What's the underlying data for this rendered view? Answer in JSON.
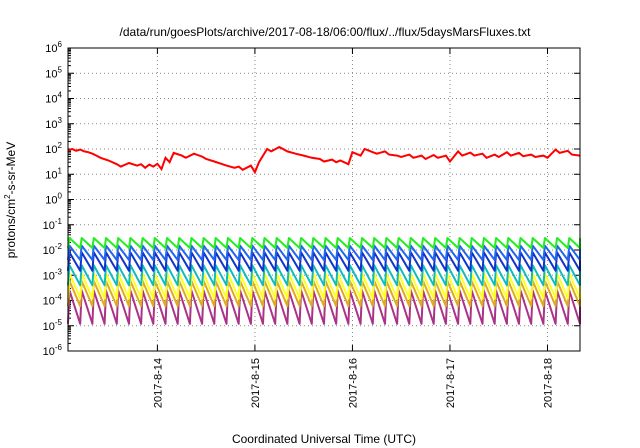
{
  "chart_data": {
    "type": "line",
    "title": "/data/run/goesPlots/archive/2017-08-18/06:00/flux/../flux/5daysMarsFluxes.txt",
    "xlabel": "Coordinated Universal Time (UTC)",
    "ylabel": {
      "prefix": "protons/cm",
      "sup": "2",
      "suffix": "-s-sr-MeV"
    },
    "yscale": "log",
    "ylim": [
      1e-06,
      1000000.0
    ],
    "ytick_base": "10",
    "yticks": [
      {
        "exp": -6,
        "label": "-6"
      },
      {
        "exp": -5,
        "label": "-5"
      },
      {
        "exp": -4,
        "label": "-4"
      },
      {
        "exp": -3,
        "label": "-3"
      },
      {
        "exp": -2,
        "label": "-2"
      },
      {
        "exp": -1,
        "label": "-1"
      },
      {
        "exp": 0,
        "label": "0"
      },
      {
        "exp": 1,
        "label": "1"
      },
      {
        "exp": 2,
        "label": "2"
      },
      {
        "exp": 3,
        "label": "3"
      },
      {
        "exp": 4,
        "label": "4"
      },
      {
        "exp": 5,
        "label": "5"
      },
      {
        "exp": 6,
        "label": "6"
      }
    ],
    "xlim": [
      "2017-08-13 02:00",
      "2017-08-18 08:00"
    ],
    "xticks": [
      {
        "date": "2017-08-14",
        "label": "2017-8-14"
      },
      {
        "date": "2017-08-15",
        "label": "2017-8-15"
      },
      {
        "date": "2017-08-16",
        "label": "2017-8-16"
      },
      {
        "date": "2017-08-17",
        "label": "2017-8-17"
      },
      {
        "date": "2017-08-18",
        "label": "2017-8-18"
      }
    ],
    "grid": true,
    "legend": false,
    "series": [
      {
        "color": "#ff0000",
        "x": [
          "2017-08-13 02:00",
          "2017-08-13 03:00",
          "2017-08-13 04:00",
          "2017-08-13 05:00",
          "2017-08-13 06:00",
          "2017-08-13 07:00",
          "2017-08-13 08:00",
          "2017-08-13 09:00",
          "2017-08-13 10:00",
          "2017-08-13 12:00",
          "2017-08-13 14:00",
          "2017-08-13 15:00",
          "2017-08-13 17:00",
          "2017-08-13 19:00",
          "2017-08-13 20:00",
          "2017-08-13 21:00",
          "2017-08-13 22:00",
          "2017-08-13 23:00",
          "2017-08-14 00:00",
          "2017-08-14 01:00",
          "2017-08-14 02:00",
          "2017-08-14 03:00",
          "2017-08-14 04:00",
          "2017-08-14 06:00",
          "2017-08-14 07:00",
          "2017-08-14 09:00",
          "2017-08-14 11:00",
          "2017-08-14 12:00",
          "2017-08-14 14:00",
          "2017-08-14 16:00",
          "2017-08-14 17:00",
          "2017-08-14 19:00",
          "2017-08-14 20:00",
          "2017-08-14 21:00",
          "2017-08-14 23:00",
          "2017-08-15 00:00",
          "2017-08-15 01:00",
          "2017-08-15 03:00",
          "2017-08-15 04:00",
          "2017-08-15 06:00",
          "2017-08-15 08:00",
          "2017-08-15 10:00",
          "2017-08-15 12:00",
          "2017-08-15 14:00",
          "2017-08-15 16:00",
          "2017-08-15 17:00",
          "2017-08-15 19:00",
          "2017-08-15 20:00",
          "2017-08-15 21:00",
          "2017-08-15 23:00",
          "2017-08-16 00:00",
          "2017-08-16 02:00",
          "2017-08-16 03:00",
          "2017-08-16 05:00",
          "2017-08-16 06:00",
          "2017-08-16 08:00",
          "2017-08-16 09:00",
          "2017-08-16 11:00",
          "2017-08-16 12:00",
          "2017-08-16 14:00",
          "2017-08-16 15:00",
          "2017-08-16 17:00",
          "2017-08-16 18:00",
          "2017-08-16 20:00",
          "2017-08-16 21:00",
          "2017-08-16 23:00",
          "2017-08-17 00:00",
          "2017-08-17 02:00",
          "2017-08-17 03:00",
          "2017-08-17 05:00",
          "2017-08-17 06:00",
          "2017-08-17 08:00",
          "2017-08-17 09:00",
          "2017-08-17 11:00",
          "2017-08-17 12:00",
          "2017-08-17 14:00",
          "2017-08-17 15:00",
          "2017-08-17 17:00",
          "2017-08-17 18:00",
          "2017-08-17 20:00",
          "2017-08-17 21:00",
          "2017-08-17 23:00",
          "2017-08-18 00:00",
          "2017-08-18 02:00",
          "2017-08-18 03:00",
          "2017-08-18 05:00",
          "2017-08-18 06:00",
          "2017-08-18 08:00"
        ],
        "y": [
          85,
          100,
          85,
          95,
          80,
          75,
          65,
          55,
          45,
          35,
          25,
          20,
          28,
          22,
          25,
          18,
          24,
          20,
          26,
          16,
          45,
          30,
          70,
          55,
          45,
          65,
          50,
          40,
          32,
          25,
          22,
          18,
          20,
          15,
          22,
          12,
          30,
          100,
          80,
          120,
          80,
          65,
          55,
          45,
          40,
          32,
          38,
          30,
          35,
          25,
          75,
          55,
          100,
          75,
          65,
          80,
          60,
          55,
          48,
          60,
          45,
          55,
          40,
          58,
          45,
          55,
          32,
          80,
          55,
          72,
          55,
          65,
          45,
          60,
          48,
          75,
          55,
          70,
          52,
          60,
          48,
          55,
          45,
          95,
          70,
          85,
          60,
          55
        ]
      }
    ],
    "oscillating_series": [
      {
        "color": "#22ee22",
        "peak": 0.03,
        "trough": 0.012
      },
      {
        "color": "#2266ee",
        "peak": 0.015,
        "trough": 0.004
      },
      {
        "color": "#1133cc",
        "peak": 0.008,
        "trough": 0.0015
      },
      {
        "color": "#11bbbb",
        "peak": 0.0025,
        "trough": 0.0004
      },
      {
        "color": "#ffff22",
        "peak": 0.0012,
        "trough": 0.00012
      },
      {
        "color": "#ddaa22",
        "peak": 0.0006,
        "trough": 6e-05
      },
      {
        "color": "#aa3388",
        "peak": 0.00025,
        "trough": 1.2e-05
      }
    ],
    "oscillation_period_hours": 3
  }
}
